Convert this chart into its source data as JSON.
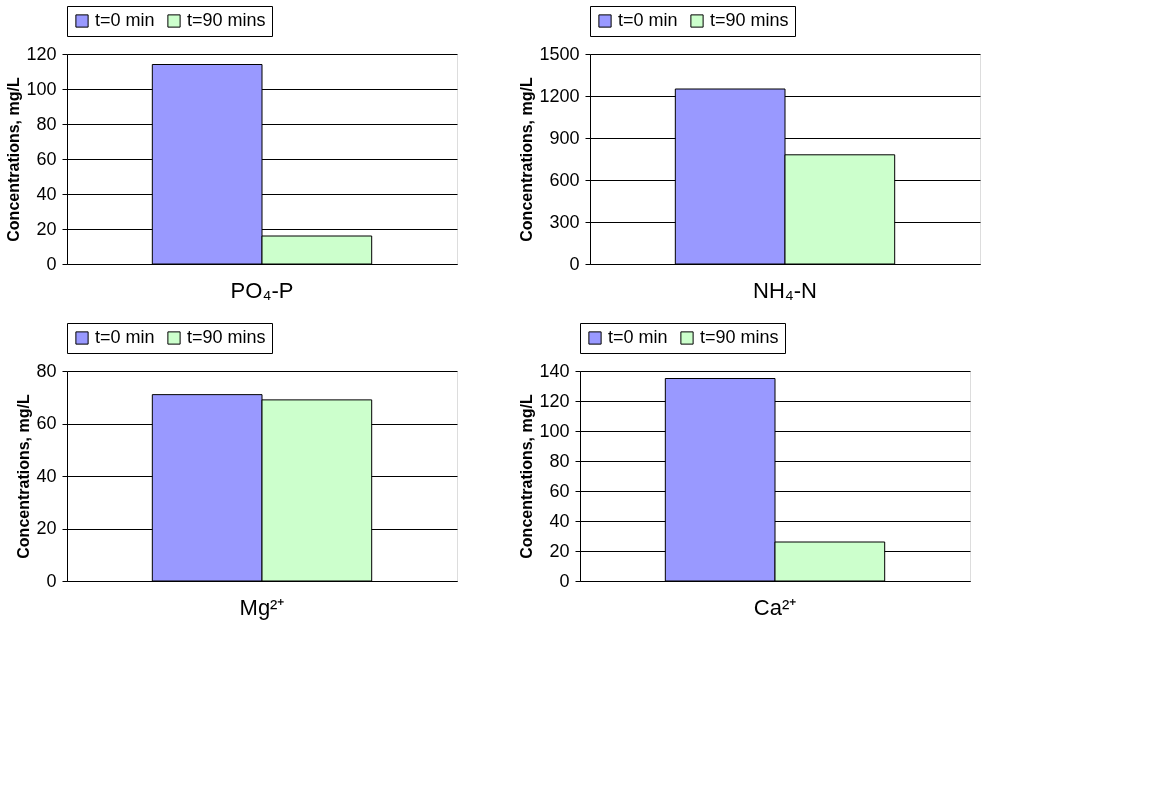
{
  "chart_data": [
    {
      "type": "bar",
      "ylabel": "Concentrations, mg/L",
      "categories": [
        "PO₄-P"
      ],
      "series": [
        {
          "name": "t=0 min",
          "color": "#9999ff",
          "values": [
            114
          ]
        },
        {
          "name": "t=90 mins",
          "color": "#ccffcc",
          "values": [
            16
          ]
        }
      ],
      "ylim": [
        0,
        120
      ],
      "yticks": [
        0,
        20,
        40,
        60,
        80,
        100,
        120
      ],
      "grid": "y",
      "legend": "top"
    },
    {
      "type": "bar",
      "ylabel": "Concentrations, mg/L",
      "categories": [
        "NH₄-N"
      ],
      "series": [
        {
          "name": "t=0 min",
          "color": "#9999ff",
          "values": [
            1250
          ]
        },
        {
          "name": "t=90 mins",
          "color": "#ccffcc",
          "values": [
            780
          ]
        }
      ],
      "ylim": [
        0,
        1500
      ],
      "yticks": [
        0,
        300,
        600,
        900,
        1200,
        1500
      ],
      "grid": "y",
      "legend": "top"
    },
    {
      "type": "bar",
      "ylabel": "Concentrations, mg/L",
      "categories": [
        "Mg²⁺"
      ],
      "series": [
        {
          "name": "t=0 min",
          "color": "#9999ff",
          "values": [
            71
          ]
        },
        {
          "name": "t=90 mins",
          "color": "#ccffcc",
          "values": [
            69
          ]
        }
      ],
      "ylim": [
        0,
        80
      ],
      "yticks": [
        0,
        20,
        40,
        60,
        80
      ],
      "grid": "y",
      "legend": "top"
    },
    {
      "type": "bar",
      "ylabel": "Concentrations, mg/L",
      "categories": [
        "Ca²⁺"
      ],
      "series": [
        {
          "name": "t=0 min",
          "color": "#9999ff",
          "values": [
            135
          ]
        },
        {
          "name": "t=90 mins",
          "color": "#ccffcc",
          "values": [
            26
          ]
        }
      ],
      "ylim": [
        0,
        140
      ],
      "yticks": [
        0,
        20,
        40,
        60,
        80,
        100,
        120,
        140
      ],
      "grid": "y",
      "legend": "top"
    }
  ]
}
